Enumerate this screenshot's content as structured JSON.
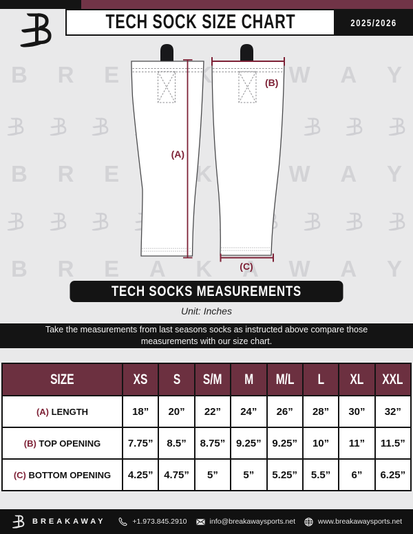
{
  "header": {
    "title": "TECH SOCK SIZE CHART",
    "season": "2025/2026"
  },
  "diagram": {
    "watermark": "BREAKAWAY",
    "labels": {
      "a": "(A)",
      "b": "(B)",
      "c": "(C)"
    }
  },
  "banner": {
    "label": "TECH SOCKS MEASUREMENTS"
  },
  "unit_note": "Unit: Inches",
  "instruction": "Take the measurements from last seasons socks as instructed above compare those measurements  with our size chart.",
  "table": {
    "size_header": "SIZE",
    "columns": [
      "XS",
      "S",
      "S/M",
      "M",
      "M/L",
      "L",
      "XL",
      "XXL"
    ],
    "rows": [
      {
        "prefix": "(A)",
        "label": "LENGTH",
        "values": [
          "18”",
          "20”",
          "22”",
          "24”",
          "26”",
          "28”",
          "30”",
          "32”"
        ]
      },
      {
        "prefix": "(B)",
        "label": "TOP OPENING",
        "values": [
          "7.75”",
          "8.5”",
          "8.75”",
          "9.25”",
          "9.25”",
          "10”",
          "11”",
          "11.5”"
        ]
      },
      {
        "prefix": "(C)",
        "label": "BOTTOM OPENING",
        "values": [
          "4.25”",
          "4.75”",
          "5”",
          "5”",
          "5.25”",
          "5.5”",
          "6”",
          "6.25”"
        ]
      }
    ]
  },
  "chart_data": {
    "type": "table",
    "title": "TECH SOCK SIZE CHART",
    "unit": "Inches",
    "categories": [
      "XS",
      "S",
      "S/M",
      "M",
      "M/L",
      "L",
      "XL",
      "XXL"
    ],
    "series": [
      {
        "name": "(A) LENGTH",
        "values": [
          18,
          20,
          22,
          24,
          26,
          28,
          30,
          32
        ]
      },
      {
        "name": "(B) TOP OPENING",
        "values": [
          7.75,
          8.5,
          8.75,
          9.25,
          9.25,
          10,
          11,
          11.5
        ]
      },
      {
        "name": "(C) BOTTOM OPENING",
        "values": [
          4.25,
          4.75,
          5,
          5,
          5.25,
          5.5,
          6,
          6.25
        ]
      }
    ]
  },
  "footer": {
    "brand": "BREAKAWAY",
    "phone": "+1.973.845.2910",
    "email": "info@breakawaysports.net",
    "website": "www.breakawaysports.net"
  },
  "colors": {
    "bg": "#e9e9ea",
    "ink": "#141414",
    "maroon-bar": "#713447",
    "maroon-header": "#6c3040",
    "accent": "#7d2136",
    "wm": "#d3d3d6"
  }
}
